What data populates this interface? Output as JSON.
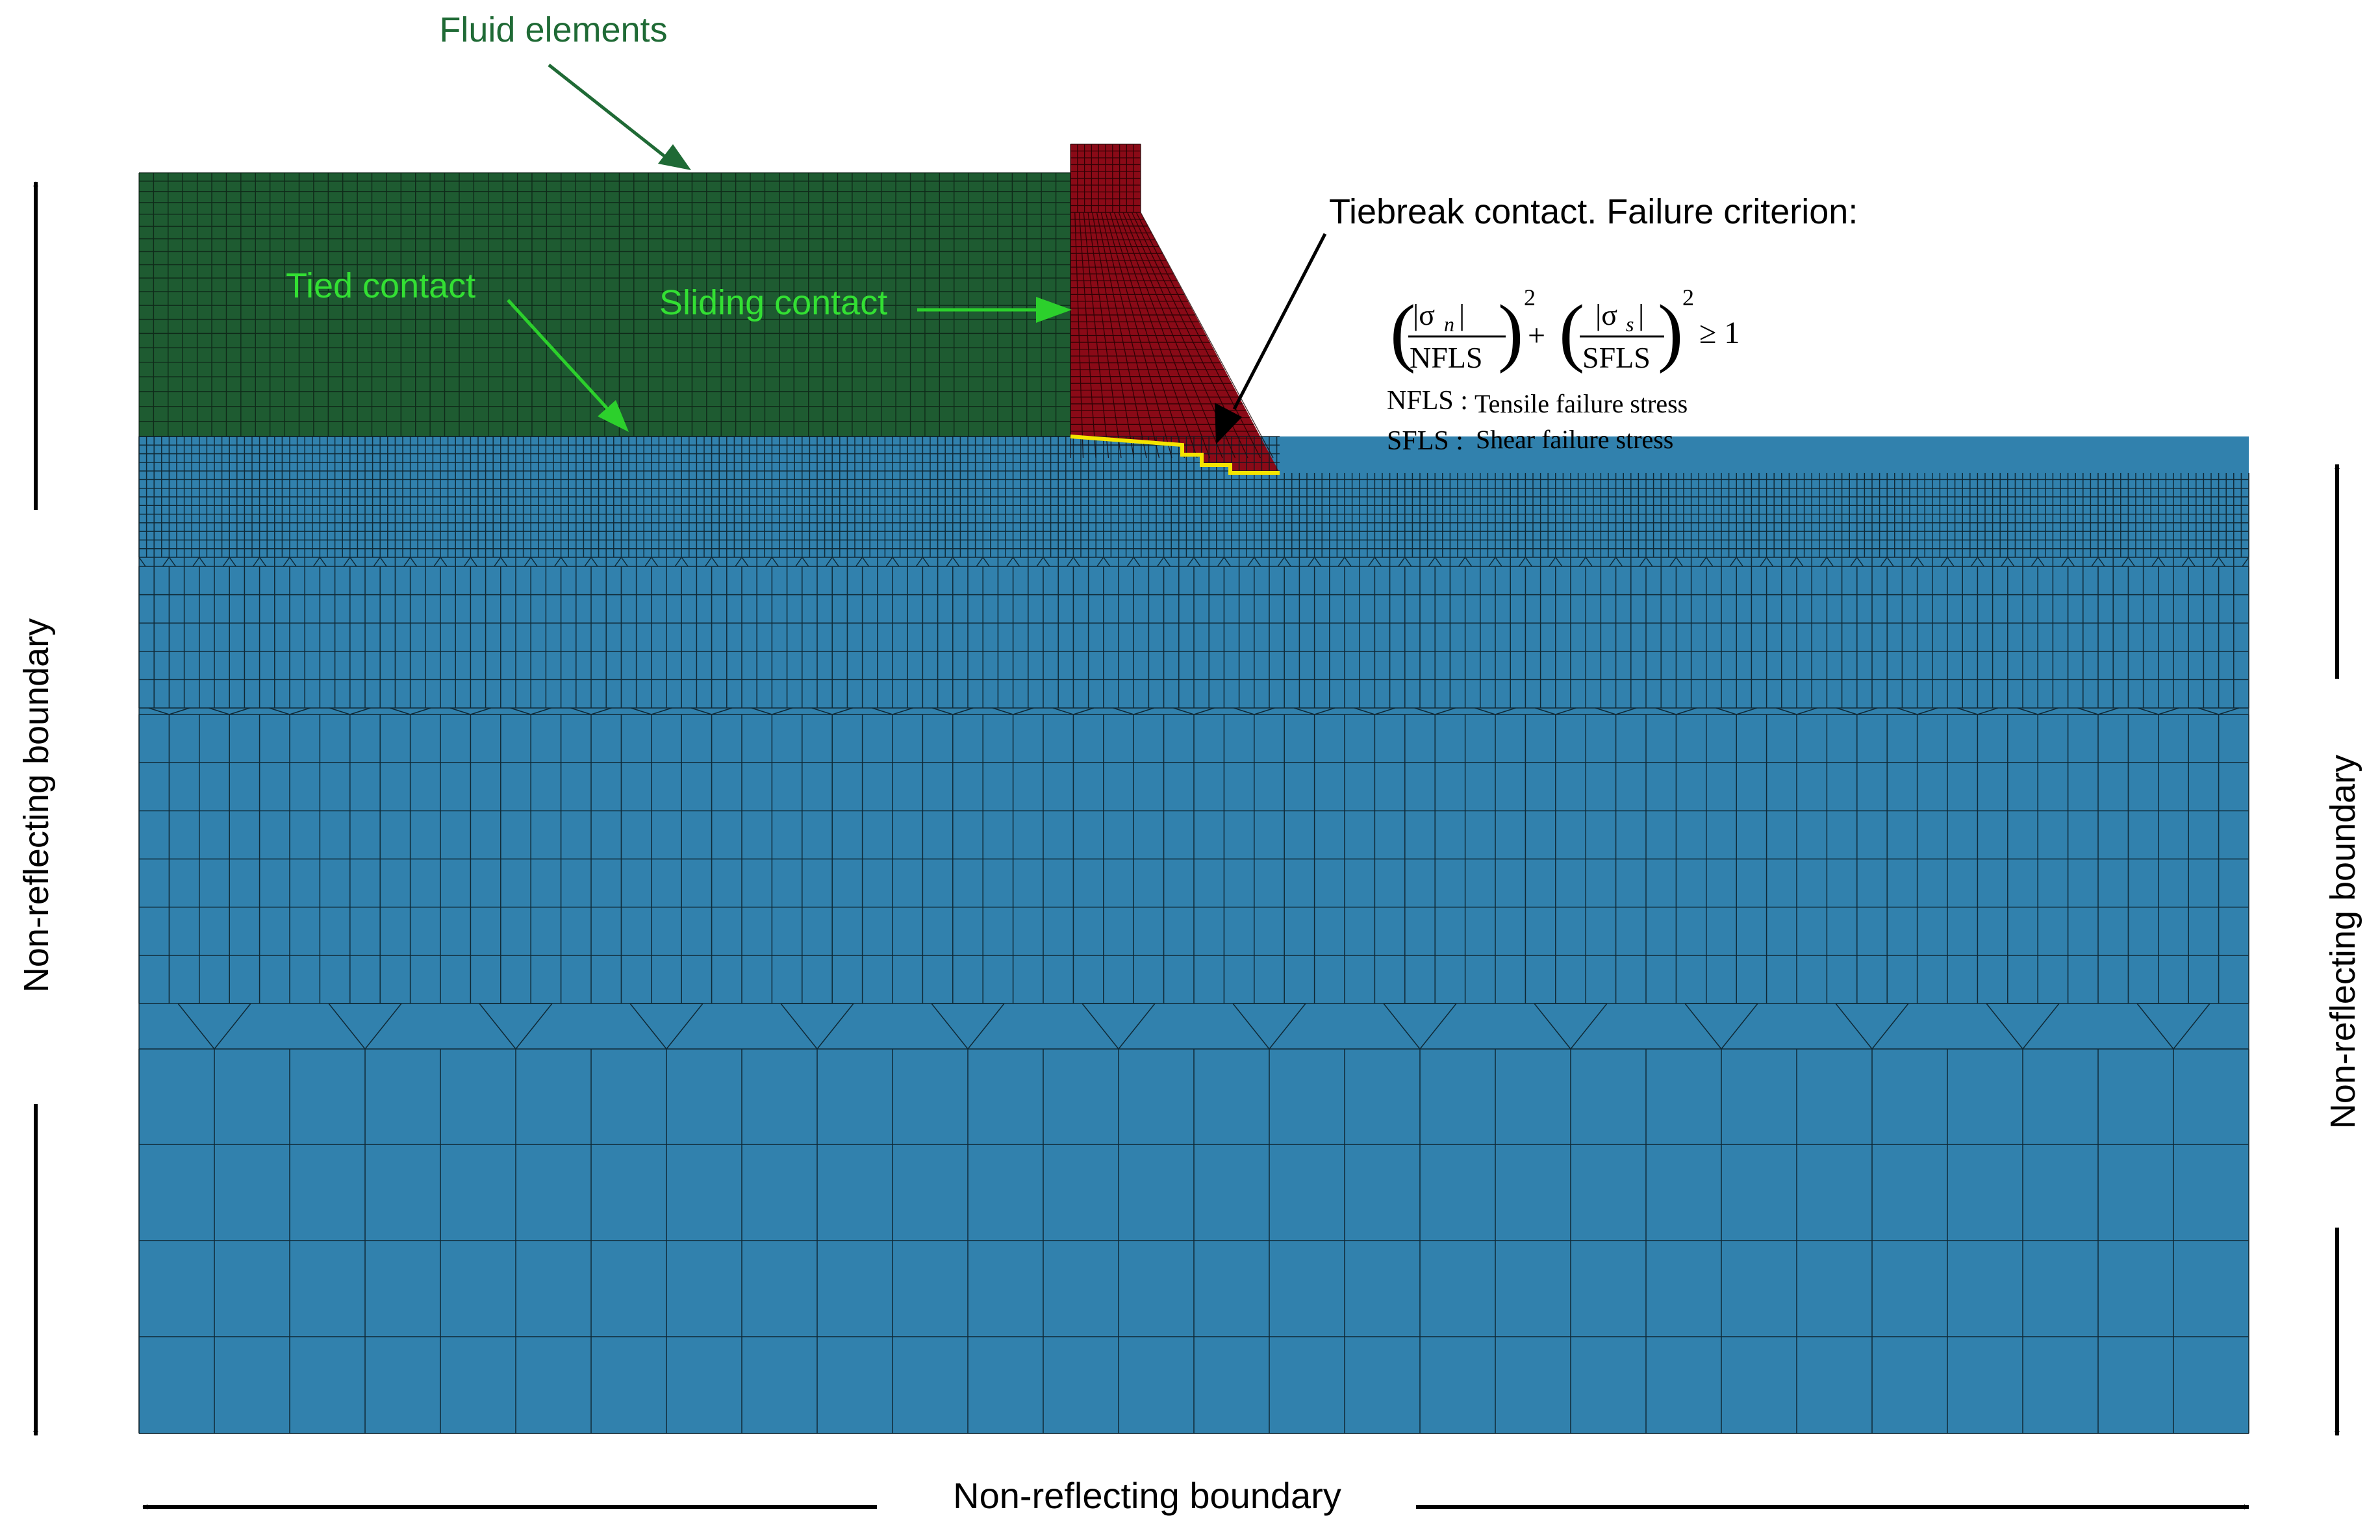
{
  "colors": {
    "fluid": "#1e5b31",
    "foundation": "#3181ad",
    "dam": "#8a0a17",
    "mesh_line": "#0a1a12",
    "tiebreak_line": "#f5e400",
    "green_label": "#33e033",
    "green_arrow": "#2cd02c",
    "fluid_label": "#1f6a35",
    "black": "#000000"
  },
  "labels": {
    "fluid_elements": "Fluid elements",
    "tied_contact": "Tied contact",
    "sliding_contact": "Sliding contact",
    "tiebreak_title": "Tiebreak contact. Failure criterion:",
    "nfls_key": "NFLS :",
    "nfls_desc": "Tensile failure stress",
    "sfls_key": "SFLS :",
    "sfls_desc": "Shear failure stress",
    "left_boundary": "Non-reflecting boundary",
    "right_boundary": "Non-reflecting boundary",
    "bottom_boundary": "Non-reflecting boundary"
  },
  "formula": {
    "sigma_n": "|σ",
    "sub_n": "n",
    "sigma_s": "|σ",
    "sub_s": "s",
    "bar": "|",
    "den_1": "NFLS",
    "den_2": "SFLS",
    "exponent": "2",
    "plus": "+",
    "relation": "≥ 1"
  }
}
